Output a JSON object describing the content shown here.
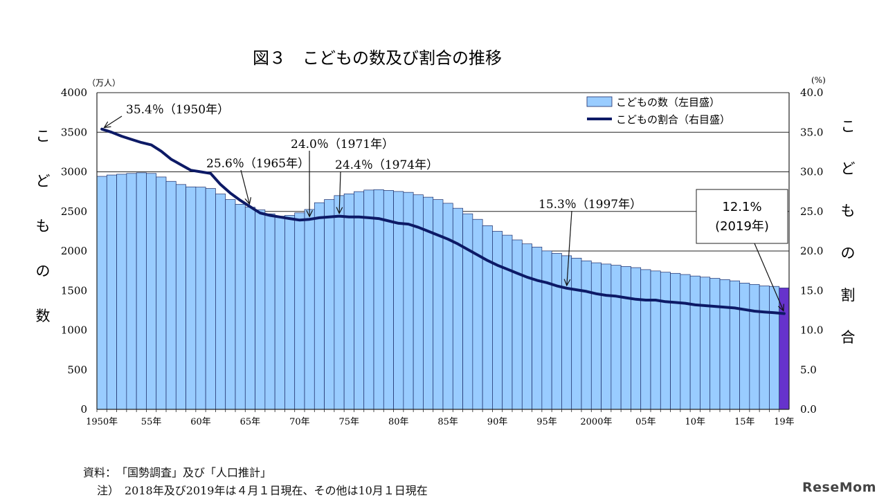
{
  "chart_data": {
    "type": "bar+line",
    "title": "図３　こどもの数及び割合の推移",
    "left_axis": {
      "unit": "（万人）",
      "label_chars": [
        "こ",
        "ど",
        "も",
        "の",
        "数"
      ],
      "ylim": [
        0,
        4000
      ],
      "ticks": [
        "0",
        "500",
        "1000",
        "1500",
        "2000",
        "2500",
        "3000",
        "3500",
        "4000"
      ]
    },
    "right_axis": {
      "unit": "(%)",
      "label_chars": [
        "こ",
        "ど",
        "も",
        "の",
        "割",
        "合"
      ],
      "ylim": [
        0,
        40
      ],
      "ticks": [
        "0.0",
        "5.0",
        "10.0",
        "15.0",
        "20.0",
        "25.0",
        "30.0",
        "35.0",
        "40.0"
      ]
    },
    "x_tick_labels": [
      {
        "year": 1950,
        "label": "1950年"
      },
      {
        "year": 1955,
        "label": "55年"
      },
      {
        "year": 1960,
        "label": "60年"
      },
      {
        "year": 1965,
        "label": "65年"
      },
      {
        "year": 1970,
        "label": "70年"
      },
      {
        "year": 1975,
        "label": "75年"
      },
      {
        "year": 1980,
        "label": "80年"
      },
      {
        "year": 1985,
        "label": "85年"
      },
      {
        "year": 1990,
        "label": "90年"
      },
      {
        "year": 1995,
        "label": "95年"
      },
      {
        "year": 2000,
        "label": "2000年"
      },
      {
        "year": 2005,
        "label": "05年"
      },
      {
        "year": 2010,
        "label": "10年"
      },
      {
        "year": 2015,
        "label": "15年"
      },
      {
        "year": 2019,
        "label": "19年"
      }
    ],
    "legend": {
      "position": "top-right",
      "entries": [
        {
          "label": "こどもの数（左目盛）",
          "kind": "bar"
        },
        {
          "label": "こどもの割合（右目盛）",
          "kind": "line"
        }
      ]
    },
    "grid": "horizontal",
    "colors": {
      "bar": "#99ccff",
      "bar_highlight": "#6633cc",
      "bar_edge": "#1a2a66",
      "line": "#0d1a66"
    },
    "years": [
      1950,
      1951,
      1952,
      1953,
      1954,
      1955,
      1956,
      1957,
      1958,
      1959,
      1960,
      1961,
      1962,
      1963,
      1964,
      1965,
      1966,
      1967,
      1968,
      1969,
      1970,
      1971,
      1972,
      1973,
      1974,
      1975,
      1976,
      1977,
      1978,
      1979,
      1980,
      1981,
      1982,
      1983,
      1984,
      1985,
      1986,
      1987,
      1988,
      1989,
      1990,
      1991,
      1992,
      1993,
      1994,
      1995,
      1996,
      1997,
      1998,
      1999,
      2000,
      2001,
      2002,
      2003,
      2004,
      2005,
      2006,
      2007,
      2008,
      2009,
      2010,
      2011,
      2012,
      2013,
      2014,
      2015,
      2016,
      2017,
      2018,
      2019
    ],
    "series": [
      {
        "name": "こどもの数（左目盛）",
        "unit": "万人",
        "values": [
          2943,
          2960,
          2970,
          2980,
          2988,
          2980,
          2935,
          2880,
          2840,
          2810,
          2807,
          2790,
          2720,
          2650,
          2590,
          2553,
          2520,
          2470,
          2440,
          2450,
          2482,
          2525,
          2610,
          2650,
          2700,
          2722,
          2750,
          2770,
          2775,
          2765,
          2752,
          2741,
          2710,
          2680,
          2650,
          2603,
          2540,
          2470,
          2400,
          2320,
          2249,
          2200,
          2140,
          2090,
          2050,
          2001,
          1970,
          1940,
          1910,
          1876,
          1851,
          1835,
          1820,
          1805,
          1790,
          1765,
          1748,
          1732,
          1718,
          1703,
          1684,
          1670,
          1655,
          1639,
          1623,
          1595,
          1578,
          1559,
          1553,
          1533
        ]
      },
      {
        "name": "こどもの割合（右目盛）",
        "unit": "%",
        "values": [
          35.4,
          35.0,
          34.5,
          34.1,
          33.7,
          33.4,
          32.6,
          31.6,
          30.9,
          30.2,
          30.0,
          29.8,
          28.4,
          27.3,
          26.4,
          25.6,
          24.8,
          24.5,
          24.3,
          24.1,
          23.9,
          24.0,
          24.2,
          24.3,
          24.4,
          24.3,
          24.3,
          24.2,
          24.1,
          23.8,
          23.5,
          23.4,
          23.0,
          22.5,
          22.0,
          21.5,
          20.9,
          20.2,
          19.5,
          18.8,
          18.2,
          17.7,
          17.2,
          16.7,
          16.3,
          16.0,
          15.6,
          15.3,
          15.1,
          14.9,
          14.6,
          14.4,
          14.3,
          14.1,
          13.9,
          13.8,
          13.8,
          13.6,
          13.5,
          13.4,
          13.2,
          13.1,
          13.0,
          12.9,
          12.8,
          12.6,
          12.4,
          12.3,
          12.2,
          12.1
        ]
      }
    ],
    "highlight_year": 2019,
    "annotations": [
      {
        "text": "35.4％（1950年）",
        "year": 1950,
        "value": 35.4
      },
      {
        "text": "25.6％（1965年）",
        "year": 1965,
        "value": 25.6
      },
      {
        "text": "24.0％（1971年）",
        "year": 1971,
        "value": 24.0
      },
      {
        "text": "24.4％（1974年）",
        "year": 1974,
        "value": 24.4
      },
      {
        "text": "15.3％（1997年）",
        "year": 1997,
        "value": 15.3
      }
    ],
    "callout": {
      "line1": "12.1%",
      "line2": "(2019年)",
      "year": 2019,
      "value": 12.1
    }
  },
  "notes": {
    "source": "資料：　「国勢調査」及び「人口推計」",
    "note": "注）　2018年及び2019年は４月１日現在、その他は10月１日現在"
  },
  "watermark": "ReseMom"
}
